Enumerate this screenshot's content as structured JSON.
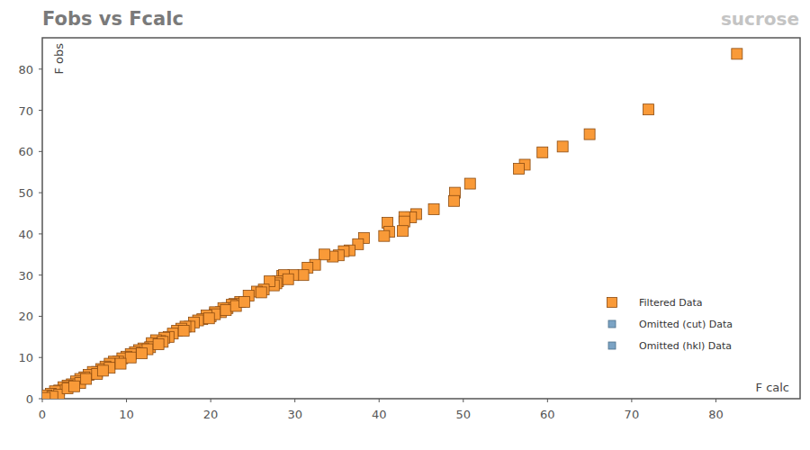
{
  "chart_data": {
    "type": "scatter",
    "title": "Fobs vs Fcalc",
    "subtitle": "sucrose",
    "x_label": "F calc",
    "y_label": "F obs",
    "xlim": [
      0,
      90
    ],
    "ylim": [
      0,
      87.6
    ],
    "xticks": [
      0,
      10,
      20,
      30,
      40,
      50,
      60,
      70,
      80
    ],
    "yticks": [
      0,
      10,
      20,
      30,
      40,
      50,
      60,
      70,
      80
    ],
    "grid": false,
    "legend": "lower right",
    "marker": "square",
    "series": [
      {
        "name": "Filtered Data",
        "color": "#f99a38",
        "marker": "square",
        "x": [
          82.5,
          72,
          65,
          61.8,
          59.4,
          57.3,
          56.6,
          50.8,
          49,
          48.9,
          46.5,
          44.4,
          43.8,
          43,
          43,
          42.8,
          41,
          41.2,
          40.6,
          38.2,
          37.5,
          36.5,
          35.8,
          35.2,
          34.5,
          33.5,
          32.4,
          31.5,
          31,
          29.8,
          28.5,
          28.7,
          28,
          27.8,
          27.5,
          27,
          26.3,
          25.5,
          24.5,
          23.5,
          22.8,
          22.5,
          22,
          21.5,
          21.2,
          20.5,
          20,
          20.5,
          19.5,
          19,
          18.5,
          18,
          17.5,
          17,
          16.5,
          16,
          15.5,
          15,
          14.5,
          14,
          13.5,
          13,
          12.8,
          12,
          11.5,
          11,
          10.5,
          10,
          9.5,
          9,
          8.5,
          8,
          7.5,
          7,
          6.5,
          6,
          5.5,
          5,
          4.5,
          4,
          3.5,
          3,
          2.5,
          2,
          1.5,
          1,
          0.5,
          2,
          3,
          4.5,
          6.5,
          8,
          10.5,
          12.5,
          14.3,
          16.8,
          19.8,
          21.8,
          23,
          24,
          26,
          29.2,
          9.3,
          11.8,
          13.8,
          7.2,
          5.2,
          3.8,
          1.2,
          0.3
        ],
        "values": [
          83.7,
          70.2,
          64.2,
          61.2,
          59.8,
          56.8,
          55.8,
          52.2,
          50,
          48,
          46,
          44.8,
          44,
          44.1,
          43,
          40.7,
          42.7,
          40.5,
          39.5,
          39,
          37.5,
          36,
          35.8,
          34.8,
          34.5,
          35,
          32.5,
          31.8,
          30,
          30,
          29.8,
          30,
          28.5,
          28,
          27.5,
          28.5,
          26.5,
          26,
          25,
          23.5,
          23,
          22.8,
          22,
          22,
          21,
          21,
          20,
          20.5,
          20.2,
          19.3,
          19,
          18.5,
          17.5,
          17.5,
          17,
          16.5,
          15.8,
          15,
          14.8,
          14,
          14.2,
          13.5,
          12.5,
          12.2,
          11.8,
          11.3,
          10.8,
          10.2,
          9.8,
          9,
          9,
          8.5,
          7.8,
          7.2,
          6.5,
          6.5,
          5.8,
          5.2,
          4.8,
          4.2,
          3.5,
          3.2,
          2.8,
          2,
          1.8,
          1.2,
          0.8,
          1,
          2.5,
          3.8,
          6,
          7.5,
          10,
          12,
          13.8,
          16.5,
          19.5,
          21.5,
          22.5,
          23.5,
          25.8,
          29,
          8.5,
          11,
          13.2,
          6.8,
          4.8,
          3,
          0.5,
          0.2
        ]
      },
      {
        "name": "Omitted (cut) Data",
        "color": "#7ba3c4",
        "marker": "square",
        "x": [],
        "values": []
      },
      {
        "name": "Omitted (hkl) Data",
        "color": "#7ba3c4",
        "marker": "square",
        "x": [],
        "values": []
      }
    ]
  }
}
